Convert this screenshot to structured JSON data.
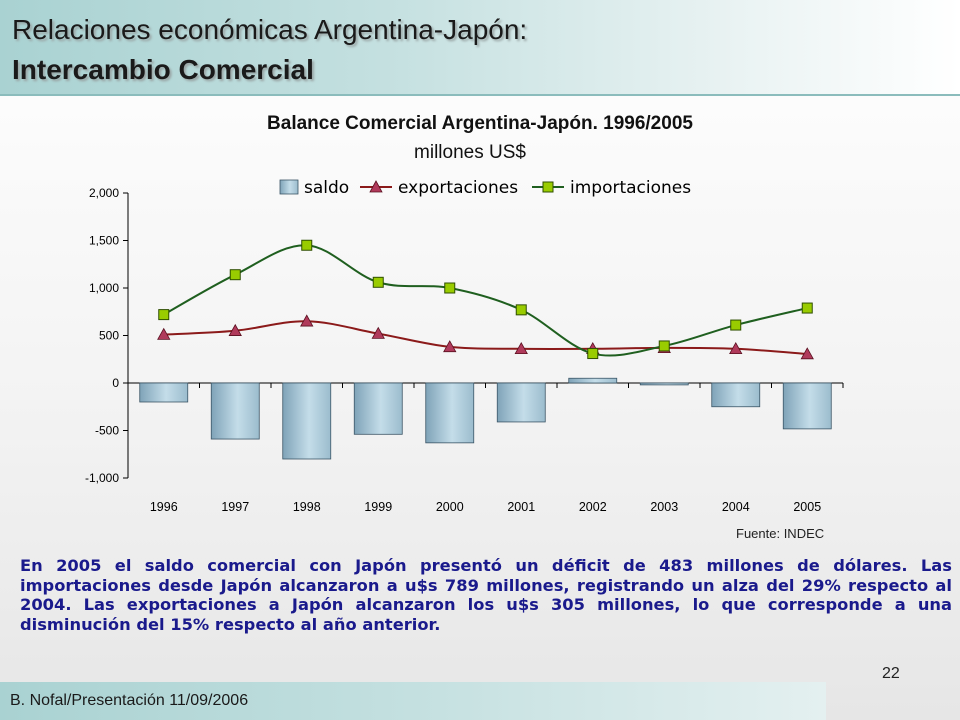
{
  "header": {
    "title_line1": "Relaciones económicas Argentina-Japón:",
    "title_line2": "Intercambio Comercial"
  },
  "chart_data": {
    "type": "bar",
    "title": "Balance Comercial Argentina-Japón. 1996/2005",
    "subtitle": "millones US$",
    "categories": [
      "1996",
      "1997",
      "1998",
      "1999",
      "2000",
      "2001",
      "2002",
      "2003",
      "2004",
      "2005"
    ],
    "series": [
      {
        "name": "saldo",
        "type": "bar",
        "color": "#a8c8d8",
        "values": [
          -200,
          -590,
          -800,
          -540,
          -630,
          -410,
          50,
          -20,
          -250,
          -483
        ]
      },
      {
        "name": "exportaciones",
        "type": "line",
        "marker": "triangle",
        "color": "#8b1a1a",
        "values": [
          510,
          550,
          650,
          520,
          380,
          360,
          360,
          370,
          360,
          305
        ]
      },
      {
        "name": "importaciones",
        "type": "line",
        "marker": "square",
        "color": "#1f5f1f",
        "marker_color": "#99cc00",
        "values": [
          720,
          1140,
          1450,
          1060,
          1000,
          770,
          310,
          390,
          610,
          789
        ]
      }
    ],
    "ylim": [
      -1000,
      2000
    ],
    "yticks": [
      "2,000",
      "1,500",
      "1,000",
      "500",
      "0",
      "-500",
      "-1,000"
    ],
    "ytick_values": [
      2000,
      1500,
      1000,
      500,
      0,
      -500,
      -1000
    ],
    "legend_position": "top",
    "grid": false,
    "source": "Fuente: INDEC"
  },
  "body_text": "En 2005 el saldo comercial con Japón presentó un déficit de 483 millones de dólares. Las importaciones desde Japón alcanzaron a u$s 789 millones, registrando un alza del 29% respecto al 2004. Las exportaciones a Japón alcanzaron los u$s 305 millones, lo que corresponde a una disminución  del 15% respecto al año anterior.",
  "footer": {
    "page_number": "22",
    "author_date": "B. Nofal/Presentación 11/09/2006"
  }
}
